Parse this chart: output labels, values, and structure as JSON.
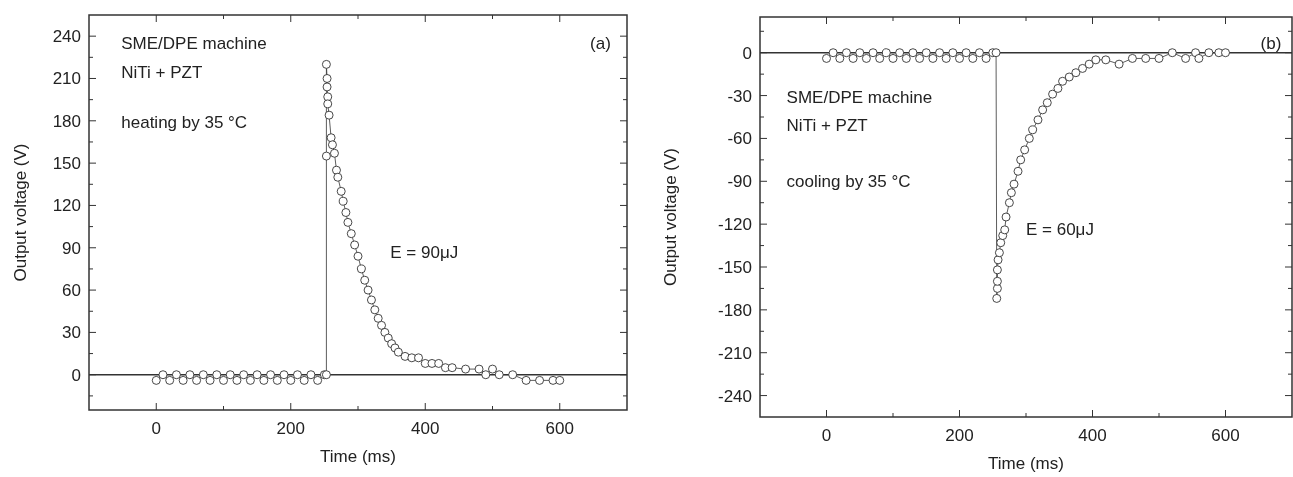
{
  "chart_data": [
    {
      "type": "line",
      "xlabel": "Time (ms)",
      "ylabel": "Output voltage (V)",
      "marker": "circle",
      "line_style": "solid",
      "xlim": [
        -100,
        700
      ],
      "xticks": [
        0,
        {
          "value": 100,
          "label": null
        },
        200,
        {
          "value": 300,
          "label": null
        },
        400,
        {
          "value": 500,
          "label": null
        },
        600
      ],
      "ylim": [
        -25,
        255
      ],
      "yticks": [
        {
          "value": -15,
          "label": null
        },
        0,
        {
          "value": 15,
          "label": null
        },
        30,
        {
          "value": 45,
          "label": null
        },
        60,
        {
          "value": 75,
          "label": null
        },
        90,
        {
          "value": 105,
          "label": null
        },
        120,
        {
          "value": 135,
          "label": null
        },
        150,
        {
          "value": 165,
          "label": null
        },
        180,
        {
          "value": 195,
          "label": null
        },
        210,
        {
          "value": 225,
          "label": null
        },
        240
      ],
      "ref_lines": [
        {
          "axis": "y",
          "value": 0,
          "color": "#333333"
        }
      ],
      "annotations": [
        "SME/DPE machine",
        "NiTi + PZT",
        "heating by 35 °C",
        "E = 90μJ",
        "(a)"
      ],
      "series": [
        {
          "color": "#333333",
          "x": [
            0,
            10,
            20,
            30,
            40,
            50,
            60,
            70,
            80,
            90,
            100,
            110,
            120,
            130,
            140,
            150,
            160,
            170,
            180,
            190,
            200,
            210,
            220,
            230,
            240,
            250,
            253,
            253,
            253,
            254,
            254,
            255,
            255,
            257,
            260,
            262,
            265,
            268,
            270,
            275,
            278,
            282,
            285,
            290,
            295,
            300,
            305,
            310,
            315,
            320,
            325,
            330,
            335,
            340,
            345,
            350,
            355,
            360,
            370,
            380,
            390,
            400,
            410,
            420,
            430,
            440,
            460,
            480,
            490,
            500,
            510,
            530,
            550,
            570,
            590,
            600
          ],
          "values": [
            -4,
            0,
            -4,
            0,
            -4,
            0,
            -4,
            0,
            -4,
            0,
            -4,
            0,
            -4,
            0,
            -4,
            0,
            -4,
            0,
            -4,
            0,
            -4,
            0,
            -4,
            0,
            -4,
            0,
            0,
            155,
            220,
            210,
            204,
            197,
            192,
            184,
            168,
            163,
            157,
            145,
            140,
            130,
            123,
            115,
            108,
            100,
            92,
            84,
            75,
            67,
            60,
            53,
            46,
            40,
            35,
            30,
            26,
            22,
            19,
            16,
            13,
            12,
            12,
            8,
            8,
            8,
            5,
            5,
            4,
            4,
            0,
            4,
            0,
            0,
            -4,
            -4,
            -4,
            -4
          ]
        }
      ]
    },
    {
      "type": "line",
      "xlabel": "Time (ms)",
      "ylabel": "Output voltage (V)",
      "marker": "circle",
      "line_style": "solid",
      "xlim": [
        -100,
        700
      ],
      "xticks": [
        0,
        {
          "value": 100,
          "label": null
        },
        200,
        {
          "value": 300,
          "label": null
        },
        400,
        {
          "value": 500,
          "label": null
        },
        600
      ],
      "ylim": [
        -255,
        25
      ],
      "yticks": [
        -240,
        {
          "value": -225,
          "label": null
        },
        -210,
        {
          "value": -195,
          "label": null
        },
        -180,
        {
          "value": -165,
          "label": null
        },
        -150,
        {
          "value": -135,
          "label": null
        },
        -120,
        {
          "value": -105,
          "label": null
        },
        -90,
        {
          "value": -75,
          "label": null
        },
        -60,
        {
          "value": -45,
          "label": null
        },
        -30,
        {
          "value": -15,
          "label": null
        },
        0,
        {
          "value": 15,
          "label": null
        }
      ],
      "ref_lines": [
        {
          "axis": "y",
          "value": 0,
          "color": "#333333"
        }
      ],
      "annotations": [
        "SME/DPE machine",
        "NiTi + PZT",
        "cooling by 35 °C",
        "E = 60μJ",
        "(b)"
      ],
      "series": [
        {
          "color": "#333333",
          "x": [
            0,
            10,
            20,
            30,
            40,
            50,
            60,
            70,
            80,
            90,
            100,
            110,
            120,
            130,
            140,
            150,
            160,
            170,
            180,
            190,
            200,
            210,
            220,
            230,
            240,
            250,
            255,
            256,
            257,
            257,
            257,
            258,
            260,
            262,
            265,
            268,
            270,
            275,
            278,
            282,
            288,
            292,
            298,
            305,
            310,
            318,
            325,
            332,
            340,
            348,
            355,
            365,
            375,
            385,
            395,
            405,
            420,
            440,
            460,
            480,
            500,
            520,
            540,
            555,
            560,
            575,
            590,
            600
          ],
          "values": [
            -4,
            0,
            -4,
            0,
            -4,
            0,
            -4,
            0,
            -4,
            0,
            -4,
            0,
            -4,
            0,
            -4,
            0,
            -4,
            0,
            -4,
            0,
            -4,
            0,
            -4,
            0,
            -4,
            0,
            0,
            -172,
            -165,
            -160,
            -152,
            -145,
            -140,
            -133,
            -128,
            -124,
            -115,
            -105,
            -98,
            -92,
            -83,
            -75,
            -68,
            -60,
            -54,
            -47,
            -40,
            -35,
            -29,
            -25,
            -20,
            -17,
            -14,
            -11,
            -8,
            -5,
            -5,
            -8,
            -4,
            -4,
            -4,
            0,
            -4,
            0,
            -4,
            0,
            0,
            0
          ]
        }
      ]
    }
  ]
}
